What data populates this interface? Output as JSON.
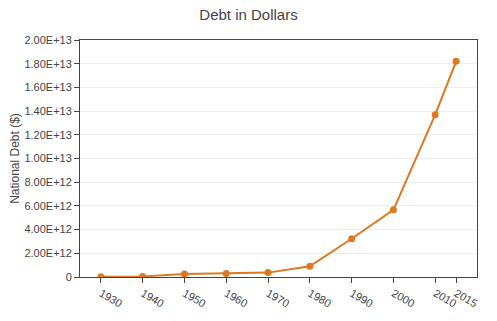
{
  "chart_data": {
    "type": "line",
    "title": "Debt in Dollars",
    "ylabel": "National Debt ($)",
    "x": [
      1930,
      1940,
      1950,
      1960,
      1970,
      1980,
      1990,
      2000,
      2010,
      2015
    ],
    "values": [
      16000000000.0,
      50000000000.0,
      257000000000.0,
      290000000000.0,
      370000000000.0,
      910000000000.0,
      3230000000000.0,
      5670000000000.0,
      13700000000000.0,
      18200000000000.0
    ],
    "color": "#E07820",
    "marker": "circle",
    "line_style": "solid",
    "xlim": [
      1925,
      2020
    ],
    "xticks": [
      1930,
      1940,
      1950,
      1960,
      1970,
      1980,
      1990,
      2000,
      2010,
      2015
    ],
    "ylim": [
      0,
      20000000000000.0
    ],
    "yticks": [
      0,
      {
        "value": 2000000000000.0,
        "label": "2.00E+12"
      },
      {
        "value": 4000000000000.0,
        "label": "4.00E+12"
      },
      {
        "value": 6000000000000.0,
        "label": "6.00E+12"
      },
      {
        "value": 8000000000000.0,
        "label": "8.00E+12"
      },
      {
        "value": 10000000000000.0,
        "label": "1.00E+13"
      },
      {
        "value": 12000000000000.0,
        "label": "1.20E+13"
      },
      {
        "value": 14000000000000.0,
        "label": "1.40E+13"
      },
      {
        "value": 16000000000000.0,
        "label": "1.60E+13"
      },
      {
        "value": 18000000000000.0,
        "label": "1.80E+13"
      },
      {
        "value": 20000000000000.0,
        "label": "2.00E+13"
      }
    ],
    "grid": "y"
  }
}
